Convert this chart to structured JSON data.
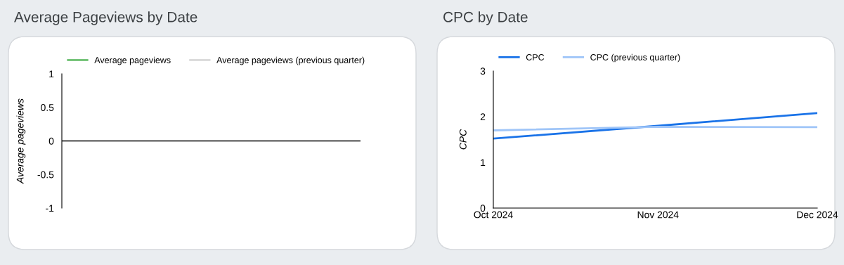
{
  "chart_data": [
    {
      "type": "line",
      "title": "Average Pageviews by Date",
      "ylabel": "Average pageviews",
      "categories": [
        null,
        null,
        null
      ],
      "series": [
        {
          "name": "Average pageviews",
          "color": "#6cc070",
          "values": [
            null,
            null,
            null
          ]
        },
        {
          "name": "Average pageviews (previous quarter)",
          "color": "#d9d9d9",
          "values": [
            null,
            null,
            null
          ]
        }
      ],
      "ylim": [
        -1,
        1
      ],
      "yticks": [
        {
          "value": -1,
          "label": "-1"
        },
        {
          "value": -0.5,
          "label": "-0.5"
        },
        0,
        0.5,
        1
      ],
      "ref_lines": [
        {
          "axis": "y",
          "value": 0,
          "color": "#000000"
        }
      ],
      "tick_labels": "y",
      "legend": "top",
      "grid": false,
      "marker": "none",
      "line_style": "solid"
    },
    {
      "type": "line",
      "title": "CPC by Date",
      "ylabel": "CPC",
      "x": [
        "2024-10",
        "2024-11",
        "2024-12"
      ],
      "series": [
        {
          "name": "CPC",
          "color": "#1a73e8",
          "values": [
            1.52,
            1.8,
            2.08
          ]
        },
        {
          "name": "CPC (previous quarter)",
          "color": "#9fc5f8",
          "values": [
            1.7,
            1.78,
            1.77
          ]
        }
      ],
      "xlim": [
        "2024-10",
        "2024-12"
      ],
      "xticks": [
        {
          "value": "2024-10",
          "label": "Oct 2024"
        },
        {
          "value": "2024-11",
          "label": "Nov 2024"
        },
        {
          "value": "2024-12",
          "label": "Dec 2024"
        }
      ],
      "ylim": [
        0,
        3
      ],
      "yticks": [
        0,
        1,
        2,
        3
      ],
      "legend": "top",
      "grid": false,
      "marker": "none",
      "line_style": "solid"
    }
  ]
}
